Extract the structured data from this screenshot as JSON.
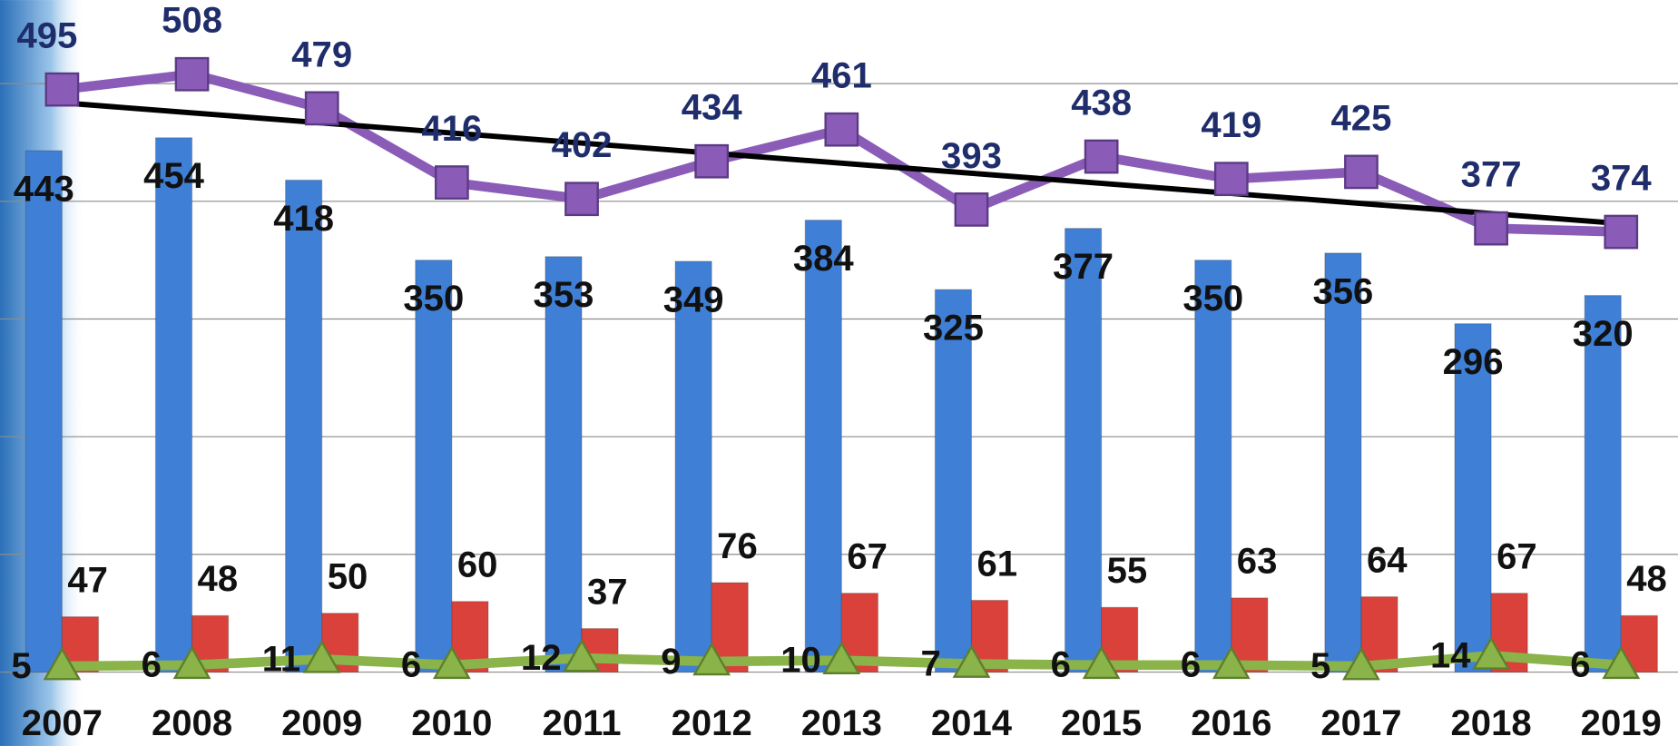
{
  "chart_data": {
    "type": "bar-line",
    "categories": [
      "2007",
      "2008",
      "2009",
      "2010",
      "2011",
      "2012",
      "2013",
      "2014",
      "2015",
      "2016",
      "2017",
      "2018",
      "2019"
    ],
    "series": [
      {
        "kind": "bar",
        "color": "#3f7fd6",
        "label_color": "#111111",
        "values": [
          443,
          454,
          418,
          350,
          353,
          349,
          384,
          325,
          377,
          350,
          356,
          296,
          320
        ]
      },
      {
        "kind": "bar",
        "color": "#d9413a",
        "label_color": "#111111",
        "values": [
          47,
          48,
          50,
          60,
          37,
          76,
          67,
          61,
          55,
          63,
          64,
          67,
          48
        ]
      },
      {
        "kind": "line",
        "color": "#8a5cb8",
        "marker": "square",
        "label_color": "#1f2d6b",
        "values": [
          495,
          508,
          479,
          416,
          402,
          434,
          461,
          393,
          438,
          419,
          425,
          377,
          374
        ],
        "trendline": true,
        "trendline_color": "#000000"
      },
      {
        "kind": "line",
        "color": "#8ab34a",
        "marker": "triangle",
        "label_color": "#111111",
        "values": [
          5,
          6,
          11,
          6,
          12,
          9,
          10,
          7,
          6,
          6,
          5,
          14,
          6
        ]
      }
    ],
    "ylim": [
      0,
      571
    ],
    "yticks": [
      0,
      100,
      200,
      300,
      400,
      500
    ],
    "grid": true,
    "tick_labels": false
  }
}
